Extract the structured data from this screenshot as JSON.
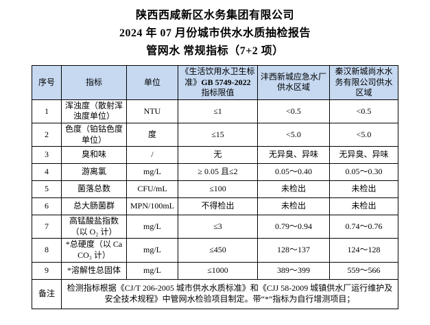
{
  "titles": {
    "company": "陕西西咸新区水务集团有限公司",
    "report": "2024 年 07 月份城市供水水质抽检报告",
    "subtitle": "管网水 常规指标（7+2 项）"
  },
  "table": {
    "headers": {
      "no": "序号",
      "indicator": "指标",
      "unit": "单位",
      "standard_pre": "《生活饮用水卫生标准》",
      "standard_bold": "GB 5749-2022",
      "standard_post": "指标限值",
      "region1": "沣西新城应急水厂供水区域",
      "region2": "秦汉新城尚水水务有限公司供水区域"
    },
    "rows": [
      {
        "no": "1",
        "indicator": "浑浊度（散射浑浊度单位）",
        "unit": "NTU",
        "limit": "≤1",
        "region1": "<0.5",
        "region2": "<0.5"
      },
      {
        "no": "2",
        "indicator": "色度（铂钴色度单位）",
        "unit": "度",
        "limit": "≤15",
        "region1": "<5.0",
        "region2": "<5.0"
      },
      {
        "no": "3",
        "indicator": "臭和味",
        "unit": "/",
        "limit": "无",
        "region1": "无异臭、异味",
        "region2": "无异臭、异味"
      },
      {
        "no": "4",
        "indicator": "游离氯",
        "unit": "mg/L",
        "limit": "≥ 0.05 且≤2",
        "region1": "0.05～0.40",
        "region2": "0.05～0.30"
      },
      {
        "no": "5",
        "indicator": "菌落总数",
        "unit": "CFU/mL",
        "limit": "≤100",
        "region1": "未检出",
        "region2": "未检出"
      },
      {
        "no": "6",
        "indicator": "总大肠菌群",
        "unit": "MPN/100mL",
        "limit": "不得检出",
        "region1": "未检出",
        "region2": "未检出"
      },
      {
        "no": "7",
        "indicator": "高锰酸盐指数（以 O₂ 计）",
        "unit": "mg/L",
        "limit": "≤3",
        "region1": "0.79～0.94",
        "region2": "0.74～0.76"
      },
      {
        "no": "8",
        "indicator": "*总硬度（以 CaCO₃ 计）",
        "unit": "mg/L",
        "limit": "≤450",
        "region1": "128～137",
        "region2": "124～128"
      },
      {
        "no": "9",
        "indicator": "*溶解性总固体",
        "unit": "mg/L",
        "limit": "≤1000",
        "region1": "389～399",
        "region2": "559～566"
      }
    ],
    "remarks_label": "备注",
    "remarks_text": "检测指标根据《CJ/T 206-2005 城市供水水质标准》和《CJJ 58-2009 城镇供水厂运行维护及安全技术规程》中管网水检验项目制定。带“*”指标为自行增测项目；"
  },
  "colors": {
    "header_bg": "#c6d9f1",
    "border": "#000000",
    "text": "#000000"
  }
}
